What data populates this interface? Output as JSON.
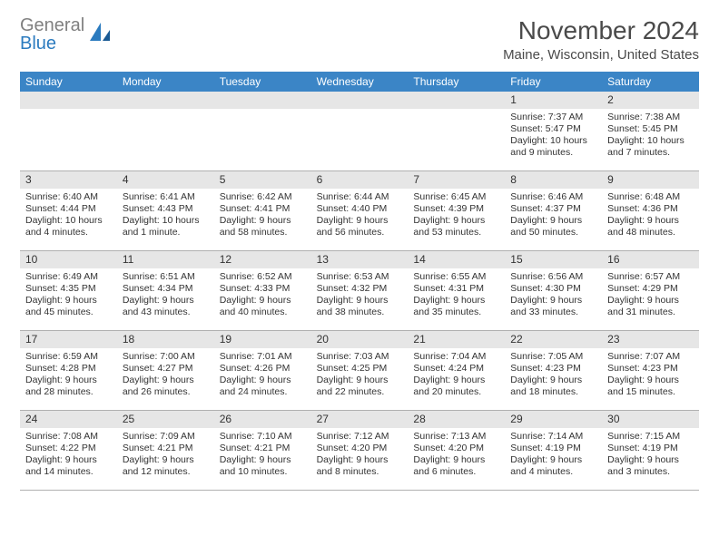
{
  "logo": {
    "part1": "General",
    "part2": "Blue"
  },
  "title": "November 2024",
  "subtitle": "Maine, Wisconsin, United States",
  "colors": {
    "header_bg": "#3b85c6",
    "header_text": "#ffffff",
    "daynum_bg": "#e6e6e6",
    "border": "#b0b0b0",
    "logo_gray": "#808080",
    "logo_blue": "#2b7bbf",
    "text": "#333333"
  },
  "day_headers": [
    "Sunday",
    "Monday",
    "Tuesday",
    "Wednesday",
    "Thursday",
    "Friday",
    "Saturday"
  ],
  "layout": {
    "columns": 7,
    "rows": 5,
    "first_day_col": 5
  },
  "days": [
    {
      "n": "",
      "sunrise": "",
      "sunset": "",
      "daylight": ""
    },
    {
      "n": "",
      "sunrise": "",
      "sunset": "",
      "daylight": ""
    },
    {
      "n": "",
      "sunrise": "",
      "sunset": "",
      "daylight": ""
    },
    {
      "n": "",
      "sunrise": "",
      "sunset": "",
      "daylight": ""
    },
    {
      "n": "",
      "sunrise": "",
      "sunset": "",
      "daylight": ""
    },
    {
      "n": "1",
      "sunrise": "Sunrise: 7:37 AM",
      "sunset": "Sunset: 5:47 PM",
      "daylight": "Daylight: 10 hours and 9 minutes."
    },
    {
      "n": "2",
      "sunrise": "Sunrise: 7:38 AM",
      "sunset": "Sunset: 5:45 PM",
      "daylight": "Daylight: 10 hours and 7 minutes."
    },
    {
      "n": "3",
      "sunrise": "Sunrise: 6:40 AM",
      "sunset": "Sunset: 4:44 PM",
      "daylight": "Daylight: 10 hours and 4 minutes."
    },
    {
      "n": "4",
      "sunrise": "Sunrise: 6:41 AM",
      "sunset": "Sunset: 4:43 PM",
      "daylight": "Daylight: 10 hours and 1 minute."
    },
    {
      "n": "5",
      "sunrise": "Sunrise: 6:42 AM",
      "sunset": "Sunset: 4:41 PM",
      "daylight": "Daylight: 9 hours and 58 minutes."
    },
    {
      "n": "6",
      "sunrise": "Sunrise: 6:44 AM",
      "sunset": "Sunset: 4:40 PM",
      "daylight": "Daylight: 9 hours and 56 minutes."
    },
    {
      "n": "7",
      "sunrise": "Sunrise: 6:45 AM",
      "sunset": "Sunset: 4:39 PM",
      "daylight": "Daylight: 9 hours and 53 minutes."
    },
    {
      "n": "8",
      "sunrise": "Sunrise: 6:46 AM",
      "sunset": "Sunset: 4:37 PM",
      "daylight": "Daylight: 9 hours and 50 minutes."
    },
    {
      "n": "9",
      "sunrise": "Sunrise: 6:48 AM",
      "sunset": "Sunset: 4:36 PM",
      "daylight": "Daylight: 9 hours and 48 minutes."
    },
    {
      "n": "10",
      "sunrise": "Sunrise: 6:49 AM",
      "sunset": "Sunset: 4:35 PM",
      "daylight": "Daylight: 9 hours and 45 minutes."
    },
    {
      "n": "11",
      "sunrise": "Sunrise: 6:51 AM",
      "sunset": "Sunset: 4:34 PM",
      "daylight": "Daylight: 9 hours and 43 minutes."
    },
    {
      "n": "12",
      "sunrise": "Sunrise: 6:52 AM",
      "sunset": "Sunset: 4:33 PM",
      "daylight": "Daylight: 9 hours and 40 minutes."
    },
    {
      "n": "13",
      "sunrise": "Sunrise: 6:53 AM",
      "sunset": "Sunset: 4:32 PM",
      "daylight": "Daylight: 9 hours and 38 minutes."
    },
    {
      "n": "14",
      "sunrise": "Sunrise: 6:55 AM",
      "sunset": "Sunset: 4:31 PM",
      "daylight": "Daylight: 9 hours and 35 minutes."
    },
    {
      "n": "15",
      "sunrise": "Sunrise: 6:56 AM",
      "sunset": "Sunset: 4:30 PM",
      "daylight": "Daylight: 9 hours and 33 minutes."
    },
    {
      "n": "16",
      "sunrise": "Sunrise: 6:57 AM",
      "sunset": "Sunset: 4:29 PM",
      "daylight": "Daylight: 9 hours and 31 minutes."
    },
    {
      "n": "17",
      "sunrise": "Sunrise: 6:59 AM",
      "sunset": "Sunset: 4:28 PM",
      "daylight": "Daylight: 9 hours and 28 minutes."
    },
    {
      "n": "18",
      "sunrise": "Sunrise: 7:00 AM",
      "sunset": "Sunset: 4:27 PM",
      "daylight": "Daylight: 9 hours and 26 minutes."
    },
    {
      "n": "19",
      "sunrise": "Sunrise: 7:01 AM",
      "sunset": "Sunset: 4:26 PM",
      "daylight": "Daylight: 9 hours and 24 minutes."
    },
    {
      "n": "20",
      "sunrise": "Sunrise: 7:03 AM",
      "sunset": "Sunset: 4:25 PM",
      "daylight": "Daylight: 9 hours and 22 minutes."
    },
    {
      "n": "21",
      "sunrise": "Sunrise: 7:04 AM",
      "sunset": "Sunset: 4:24 PM",
      "daylight": "Daylight: 9 hours and 20 minutes."
    },
    {
      "n": "22",
      "sunrise": "Sunrise: 7:05 AM",
      "sunset": "Sunset: 4:23 PM",
      "daylight": "Daylight: 9 hours and 18 minutes."
    },
    {
      "n": "23",
      "sunrise": "Sunrise: 7:07 AM",
      "sunset": "Sunset: 4:23 PM",
      "daylight": "Daylight: 9 hours and 15 minutes."
    },
    {
      "n": "24",
      "sunrise": "Sunrise: 7:08 AM",
      "sunset": "Sunset: 4:22 PM",
      "daylight": "Daylight: 9 hours and 14 minutes."
    },
    {
      "n": "25",
      "sunrise": "Sunrise: 7:09 AM",
      "sunset": "Sunset: 4:21 PM",
      "daylight": "Daylight: 9 hours and 12 minutes."
    },
    {
      "n": "26",
      "sunrise": "Sunrise: 7:10 AM",
      "sunset": "Sunset: 4:21 PM",
      "daylight": "Daylight: 9 hours and 10 minutes."
    },
    {
      "n": "27",
      "sunrise": "Sunrise: 7:12 AM",
      "sunset": "Sunset: 4:20 PM",
      "daylight": "Daylight: 9 hours and 8 minutes."
    },
    {
      "n": "28",
      "sunrise": "Sunrise: 7:13 AM",
      "sunset": "Sunset: 4:20 PM",
      "daylight": "Daylight: 9 hours and 6 minutes."
    },
    {
      "n": "29",
      "sunrise": "Sunrise: 7:14 AM",
      "sunset": "Sunset: 4:19 PM",
      "daylight": "Daylight: 9 hours and 4 minutes."
    },
    {
      "n": "30",
      "sunrise": "Sunrise: 7:15 AM",
      "sunset": "Sunset: 4:19 PM",
      "daylight": "Daylight: 9 hours and 3 minutes."
    }
  ]
}
